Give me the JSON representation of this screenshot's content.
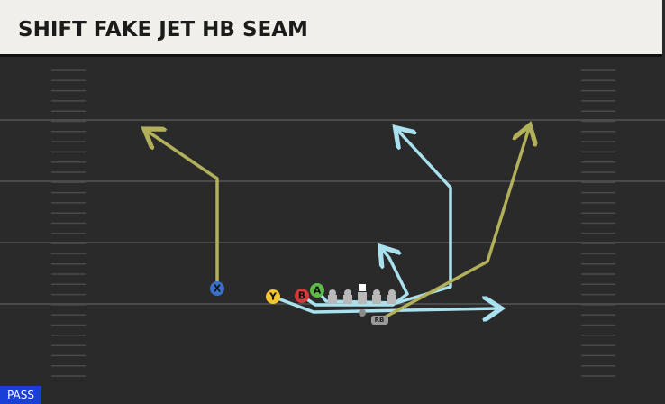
{
  "header": {
    "title": "SHIFT FAKE JET HB SEAM"
  },
  "players": [
    {
      "label": "X"
    },
    {
      "label": "Y"
    },
    {
      "label": "B"
    },
    {
      "label": "A"
    },
    {
      "label": "RB"
    }
  ],
  "badge": {
    "label": "PASS"
  }
}
